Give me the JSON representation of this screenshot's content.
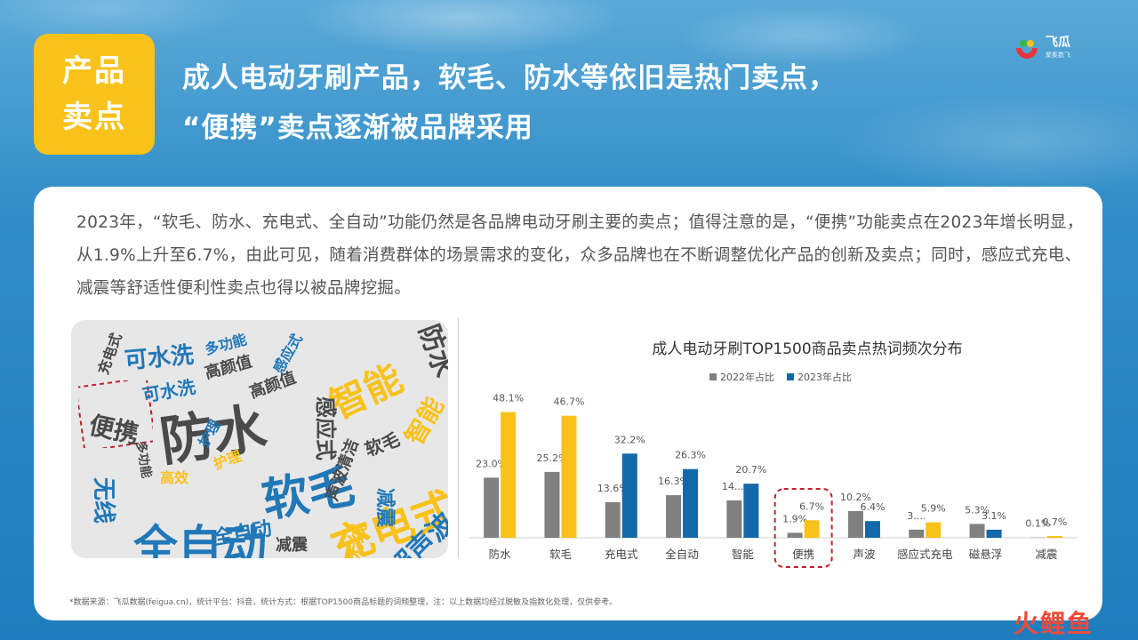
{
  "tag": {
    "line1": "产品",
    "line2": "卖点"
  },
  "headline": {
    "line1": "成人电动牙刷产品，软毛、防水等依旧是热门卖点，",
    "line2": "“便携”卖点逐渐被品牌采用"
  },
  "logo": {
    "name": "飞瓜",
    "sub": "聚集数飞"
  },
  "summary": "2023年，“软毛、防水、充电式、全自动”功能仍然是各品牌电动牙刷主要的卖点；值得注意的是，“便携”功能卖点在2023年增长明显，从1.9%上升至6.7%，由此可见，随着消费群体的场景需求的变化，众多品牌也在不断调整优化产品的创新及卖点；同时，感应式充电、减震等舒适性便利性卖点也得以被品牌挖掘。",
  "word_cloud": {
    "words": [
      "防水",
      "软毛",
      "全自动",
      "充电式",
      "智能",
      "便携",
      "可水洗",
      "感应式",
      "高颜值",
      "无线",
      "多功能",
      "护理",
      "声波清洁",
      "超声波",
      "减震",
      "高效",
      "软毛",
      "全自动",
      "防水",
      "无线",
      "高颜值",
      "智能",
      "可水洗",
      "感应式",
      "充电式",
      "多功能",
      "护理",
      "减震"
    ]
  },
  "colors": {
    "series_2022": "#808080",
    "series_2023_highlight": "#f8c21a",
    "series_2023": "#1268a8",
    "accent_red": "#c0202a"
  },
  "chart_data": {
    "type": "bar",
    "title": "成人电动牙刷TOP1500商品卖点热词频次分布",
    "categories": [
      "防水",
      "软毛",
      "充电式",
      "全自动",
      "智能",
      "便携",
      "声波",
      "感应式充电",
      "磁悬浮",
      "减震"
    ],
    "series": [
      {
        "name": "2022年占比",
        "values": [
          23.0,
          25.2,
          13.6,
          16.3,
          14.3,
          1.9,
          10.2,
          3.1,
          5.3,
          0.1
        ],
        "labels": [
          "23.0%",
          "25.2%",
          "13.6%",
          "16.3%",
          "14....",
          "1.9%",
          "10.2%",
          "3....",
          "5.3%",
          "0.1%"
        ]
      },
      {
        "name": "2023年占比",
        "values": [
          48.1,
          46.7,
          32.2,
          26.3,
          20.7,
          6.7,
          6.4,
          5.9,
          3.1,
          0.7
        ],
        "labels": [
          "48.1%",
          "46.7%",
          "32.2%",
          "26.3%",
          "20.7%",
          "6.7%",
          "6.4%",
          "5.9%",
          "3.1%",
          "0.7%"
        ]
      }
    ],
    "bar_color_2023_by_category": [
      "#f8c21a",
      "#f8c21a",
      "#1268a8",
      "#1268a8",
      "#1268a8",
      "#f8c21a",
      "#1268a8",
      "#f8c21a",
      "#1268a8",
      "#f8c21a"
    ],
    "highlight_category": "便携",
    "legend": "top",
    "ylim": [
      0,
      50
    ]
  },
  "footnote": "*数据来源：飞瓜数据(feigua.cn)，统计平台：抖音，统计方式：根据TOP1500商品标题的词频整理，注：以上数据均经过脱敏及指数化处理，仅供参考。",
  "watermark": "火鲤鱼"
}
